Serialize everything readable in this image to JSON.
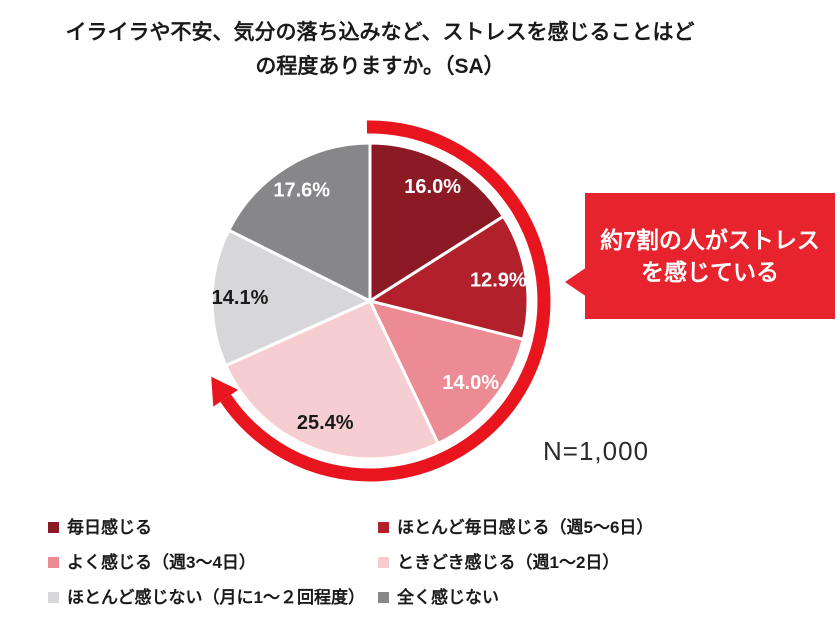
{
  "title": {
    "line1": "イライラや不安、気分の落ち込みなど、ストレスを感じることはど",
    "line2": "の程度ありますか。（SA）"
  },
  "chart_data": {
    "type": "pie",
    "title": "イライラや不安、気分の落ち込みなど、ストレスを感じることはどの程度ありますか。（SA）",
    "start_angle_deg": 0,
    "direction": "clockwise",
    "value_suffix": "%",
    "slice_border_color": "#ffffff",
    "slices": [
      {
        "label": "毎日感じる",
        "value": 16.0,
        "color": "#8b1a24",
        "label_color": "#ffffff"
      },
      {
        "label": "ほとんど毎日感じる（週5～6日）",
        "value": 12.9,
        "color": "#b2202c",
        "label_color": "#ffffff"
      },
      {
        "label": "よく感じる（週3～4日）",
        "value": 14.0,
        "color": "#ec8b93",
        "label_color": "#ffffff"
      },
      {
        "label": "ときどき感じる（週1～2日）",
        "value": 25.4,
        "color": "#f6ced2",
        "label_color": "#1a1a1a"
      },
      {
        "label": "ほとんど感じない（月に1～２回程度）",
        "value": 14.1,
        "color": "#d7d7d9",
        "label_color": "#1a1a1a"
      },
      {
        "label": "全く感じない",
        "value": 17.6,
        "color": "#87878a",
        "label_color": "#ffffff"
      }
    ],
    "sample_size_label": "N=1,000",
    "highlight_arc": {
      "color": "#e8141e",
      "covered_slice_count": 4,
      "covered_percent_total": 68.3,
      "start_angle_deg": -1,
      "end_angle_deg": 236
    }
  },
  "callout": {
    "line1": "約7割の人がストレス",
    "line2": "を感じている",
    "background": "#e7242d",
    "text_color": "#ffffff"
  }
}
